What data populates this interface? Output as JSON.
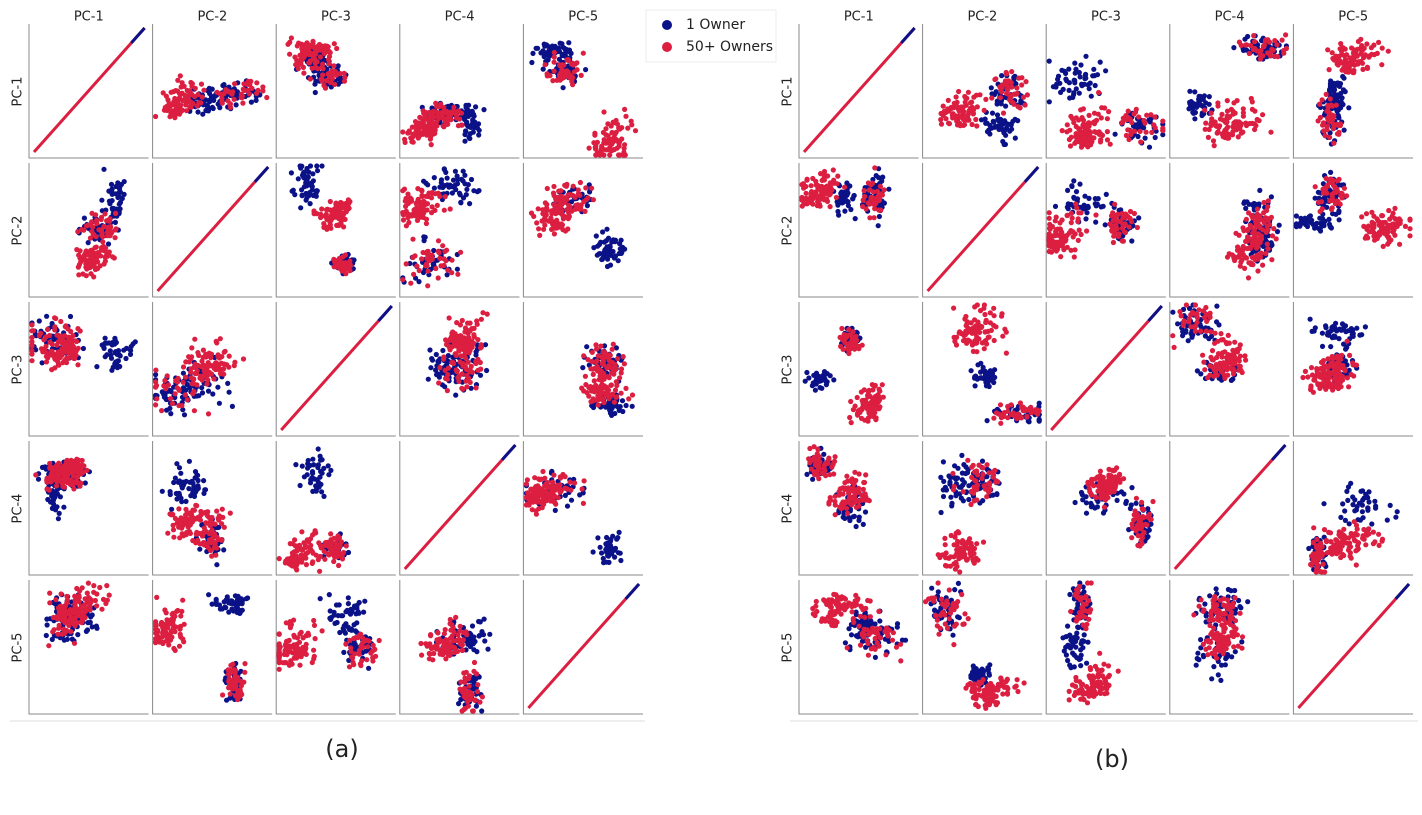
{
  "panels": [
    {
      "caption": "(a)",
      "columns": [
        "PC-1",
        "PC-2",
        "PC-3",
        "PC-4",
        "PC-5"
      ],
      "rows": [
        "PC-1",
        "PC-2",
        "PC-3",
        "PC-4",
        "PC-5"
      ]
    },
    {
      "caption": "(b)",
      "columns": [
        "PC-1",
        "PC-2",
        "PC-3",
        "PC-4",
        "PC-5"
      ],
      "rows": [
        "PC-1",
        "PC-2",
        "PC-3",
        "PC-4",
        "PC-5"
      ]
    }
  ],
  "legend": [
    {
      "label": "1 Owner",
      "color": "#0b1288"
    },
    {
      "label": "50+ Owners",
      "color": "#dc1e40"
    }
  ]
}
